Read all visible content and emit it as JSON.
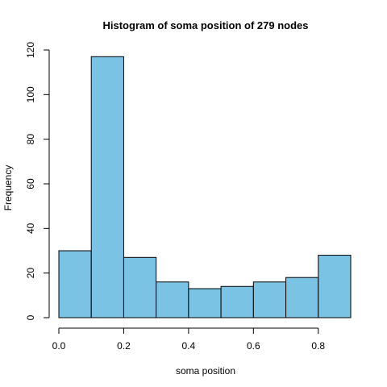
{
  "chart_data": {
    "type": "bar",
    "title": "Histogram of soma position of 279 nodes",
    "xlabel": "soma position",
    "ylabel": "Frequency",
    "bins": [
      {
        "from": 0.0,
        "to": 0.1,
        "value": 30
      },
      {
        "from": 0.1,
        "to": 0.2,
        "value": 117
      },
      {
        "from": 0.2,
        "to": 0.3,
        "value": 27
      },
      {
        "from": 0.3,
        "to": 0.4,
        "value": 16
      },
      {
        "from": 0.4,
        "to": 0.5,
        "value": 13
      },
      {
        "from": 0.5,
        "to": 0.6,
        "value": 14
      },
      {
        "from": 0.6,
        "to": 0.7,
        "value": 16
      },
      {
        "from": 0.7,
        "to": 0.8,
        "value": 18
      },
      {
        "from": 0.8,
        "to": 0.9,
        "value": 28
      }
    ],
    "xlim": [
      0.0,
      0.9
    ],
    "ylim": [
      0,
      120
    ],
    "xticks": [
      "0.0",
      "0.2",
      "0.4",
      "0.6",
      "0.8"
    ],
    "xtick_values": [
      0.0,
      0.2,
      0.4,
      0.6,
      0.8
    ],
    "yticks": [
      "0",
      "20",
      "40",
      "60",
      "80",
      "100",
      "120"
    ],
    "ytick_values": [
      0,
      20,
      40,
      60,
      80,
      100,
      120
    ],
    "bar_color": "#7AC3E5",
    "edge_color": "#000000",
    "grid": false,
    "legend": "none"
  }
}
